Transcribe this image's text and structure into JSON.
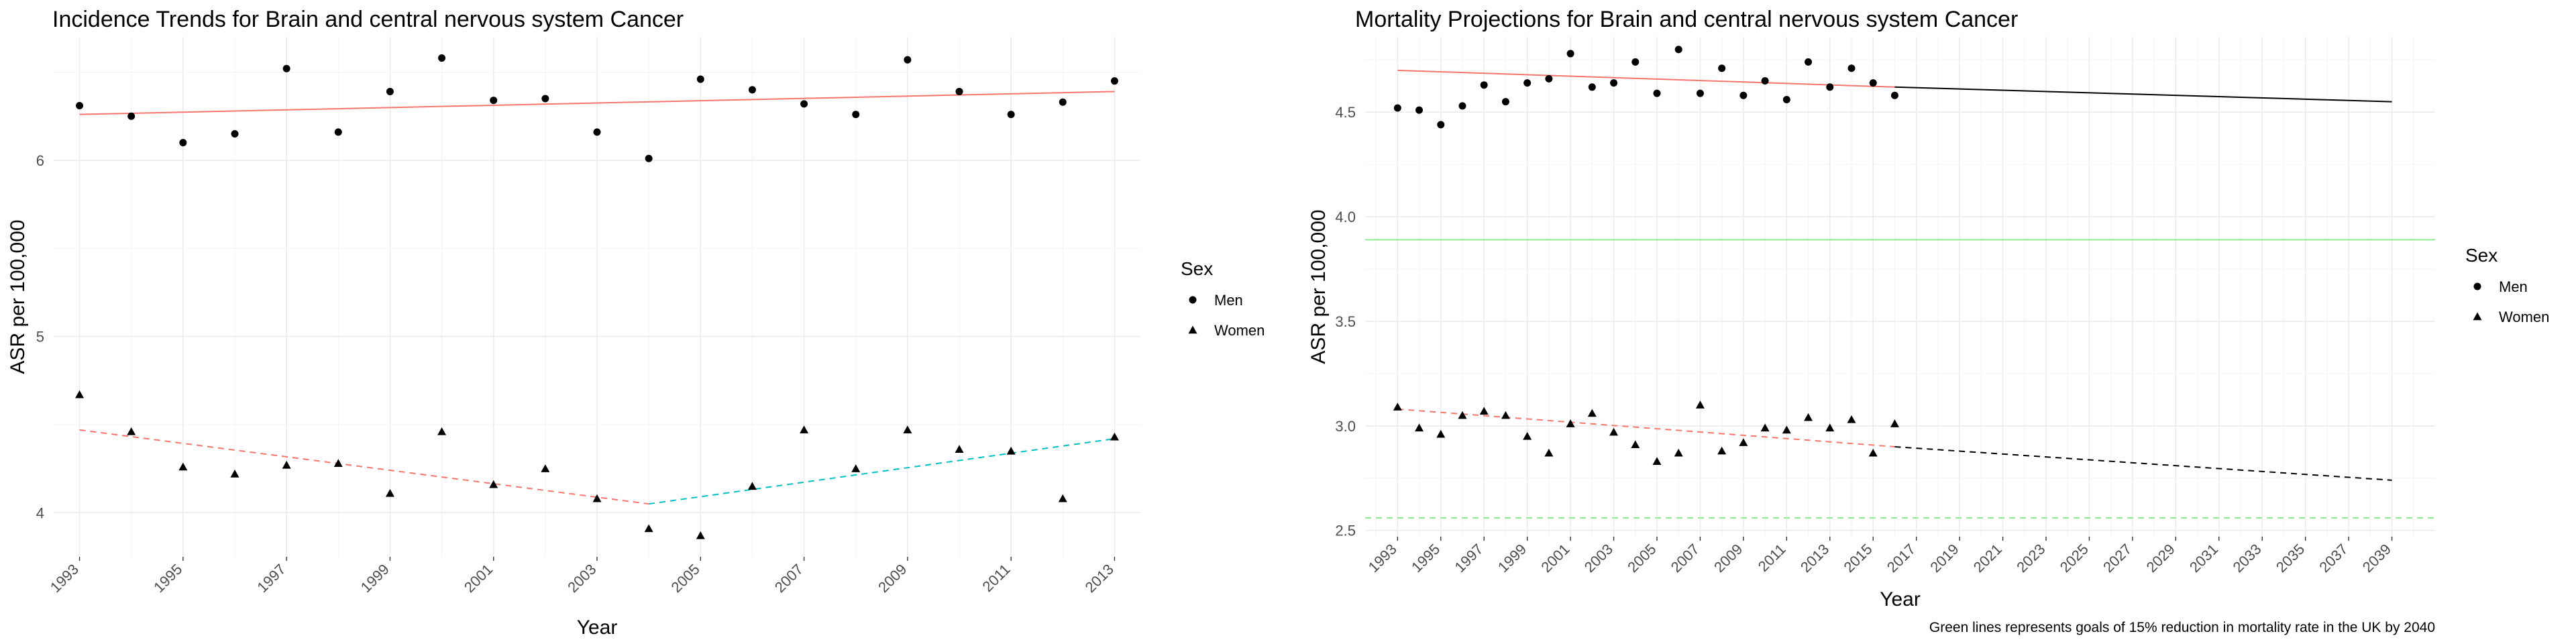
{
  "chart_data": [
    {
      "type": "scatter",
      "title": "Incidence Trends for Brain and central nervous system Cancer",
      "xlabel": "Year",
      "ylabel": "ASR per 100,000",
      "xlim": [
        1992.5,
        2013.5
      ],
      "ylim": [
        3.75,
        6.7
      ],
      "x_ticks": [
        1993,
        1995,
        1997,
        1999,
        2001,
        2003,
        2005,
        2007,
        2009,
        2011,
        2013
      ],
      "y_ticks": [
        4,
        5,
        6
      ],
      "grid": true,
      "legend": {
        "title": "Sex",
        "position": "right",
        "entries": [
          "Men",
          "Women"
        ]
      },
      "series": [
        {
          "name": "Men",
          "marker": "circle",
          "x": [
            1993,
            1994,
            1995,
            1996,
            1997,
            1998,
            1999,
            2000,
            2001,
            2002,
            2003,
            2004,
            2005,
            2006,
            2007,
            2008,
            2009,
            2010,
            2011,
            2012,
            2013
          ],
          "y": [
            6.31,
            6.25,
            6.1,
            6.15,
            6.52,
            6.16,
            6.39,
            6.58,
            6.34,
            6.35,
            6.16,
            6.01,
            6.46,
            6.4,
            6.32,
            6.26,
            6.57,
            6.39,
            6.26,
            6.33,
            6.45
          ]
        },
        {
          "name": "Women",
          "marker": "triangle",
          "x": [
            1993,
            1994,
            1995,
            1996,
            1997,
            1998,
            1999,
            2000,
            2001,
            2002,
            2003,
            2004,
            2005,
            2006,
            2007,
            2008,
            2009,
            2010,
            2011,
            2012,
            2013
          ],
          "y": [
            4.67,
            4.46,
            4.26,
            4.22,
            4.27,
            4.28,
            4.11,
            4.46,
            4.16,
            4.25,
            4.08,
            3.91,
            3.87,
            4.15,
            4.47,
            4.25,
            4.47,
            4.36,
            4.35,
            4.08,
            4.43
          ]
        }
      ],
      "trend_lines": [
        {
          "color": "#F8766D",
          "dash": "solid",
          "points": [
            [
              1993,
              6.26
            ],
            [
              2013,
              6.39
            ]
          ]
        },
        {
          "color": "#F8766D",
          "dash": "dashed",
          "points": [
            [
              1993,
              4.47
            ],
            [
              2004,
              4.05
            ]
          ]
        },
        {
          "color": "#00BFC4",
          "dash": "dashed",
          "points": [
            [
              2004,
              4.05
            ],
            [
              2013,
              4.42
            ]
          ]
        }
      ]
    },
    {
      "type": "scatter",
      "title": "Mortality Projections for Brain and central nervous system Cancer",
      "xlabel": "Year",
      "ylabel": "ASR per 100,000",
      "xlim": [
        1991.5,
        2041.0
      ],
      "ylim": [
        2.47,
        4.86
      ],
      "x_ticks": [
        1993,
        1995,
        1997,
        1999,
        2001,
        2003,
        2005,
        2007,
        2009,
        2011,
        2013,
        2015,
        2017,
        2019,
        2021,
        2023,
        2025,
        2027,
        2029,
        2031,
        2033,
        2035,
        2037,
        2039
      ],
      "y_ticks": [
        2.5,
        3.0,
        3.5,
        4.0,
        4.5
      ],
      "y_tick_labels": [
        "2.5",
        "3.0",
        "3.5",
        "4.0",
        "4.5"
      ],
      "grid": true,
      "legend": {
        "title": "Sex",
        "position": "right",
        "entries": [
          "Men",
          "Women"
        ]
      },
      "caption": "Green lines represents goals of 15% reduction in mortality rate in the UK by 2040",
      "series": [
        {
          "name": "Men",
          "marker": "circle",
          "x": [
            1993,
            1994,
            1995,
            1996,
            1997,
            1998,
            1999,
            2000,
            2001,
            2002,
            2003,
            2004,
            2005,
            2006,
            2007,
            2008,
            2009,
            2010,
            2011,
            2012,
            2013,
            2014,
            2015,
            2016
          ],
          "y": [
            4.52,
            4.51,
            4.44,
            4.53,
            4.63,
            4.55,
            4.64,
            4.66,
            4.78,
            4.62,
            4.64,
            4.74,
            4.59,
            4.8,
            4.59,
            4.71,
            4.58,
            4.65,
            4.56,
            4.74,
            4.62,
            4.71,
            4.64,
            4.58
          ]
        },
        {
          "name": "Women",
          "marker": "triangle",
          "x": [
            1993,
            1994,
            1995,
            1996,
            1997,
            1998,
            1999,
            2000,
            2001,
            2002,
            2003,
            2004,
            2005,
            2006,
            2007,
            2008,
            2009,
            2010,
            2011,
            2012,
            2013,
            2014,
            2015,
            2016
          ],
          "y": [
            3.09,
            2.99,
            2.96,
            3.05,
            3.07,
            3.05,
            2.95,
            2.87,
            3.01,
            3.06,
            2.97,
            2.91,
            2.83,
            2.87,
            3.1,
            2.88,
            2.92,
            2.99,
            2.98,
            3.04,
            2.99,
            3.03,
            2.87,
            3.01
          ]
        }
      ],
      "trend_lines": [
        {
          "color": "#F8766D",
          "dash": "solid",
          "points": [
            [
              1993,
              4.7
            ],
            [
              2016,
              4.62
            ]
          ]
        },
        {
          "color": "#000000",
          "dash": "solid",
          "points": [
            [
              2016,
              4.62
            ],
            [
              2039,
              4.55
            ]
          ]
        },
        {
          "color": "#F8766D",
          "dash": "dashed",
          "points": [
            [
              1993,
              3.08
            ],
            [
              2016,
              2.9
            ]
          ]
        },
        {
          "color": "#000000",
          "dash": "dashed",
          "points": [
            [
              2016,
              2.9
            ],
            [
              2039,
              2.74
            ]
          ]
        }
      ],
      "reference_lines": [
        {
          "color": "#90EE90",
          "dash": "solid",
          "y": 3.89
        },
        {
          "color": "#90EE90",
          "dash": "dashed",
          "y": 2.56
        }
      ]
    }
  ]
}
